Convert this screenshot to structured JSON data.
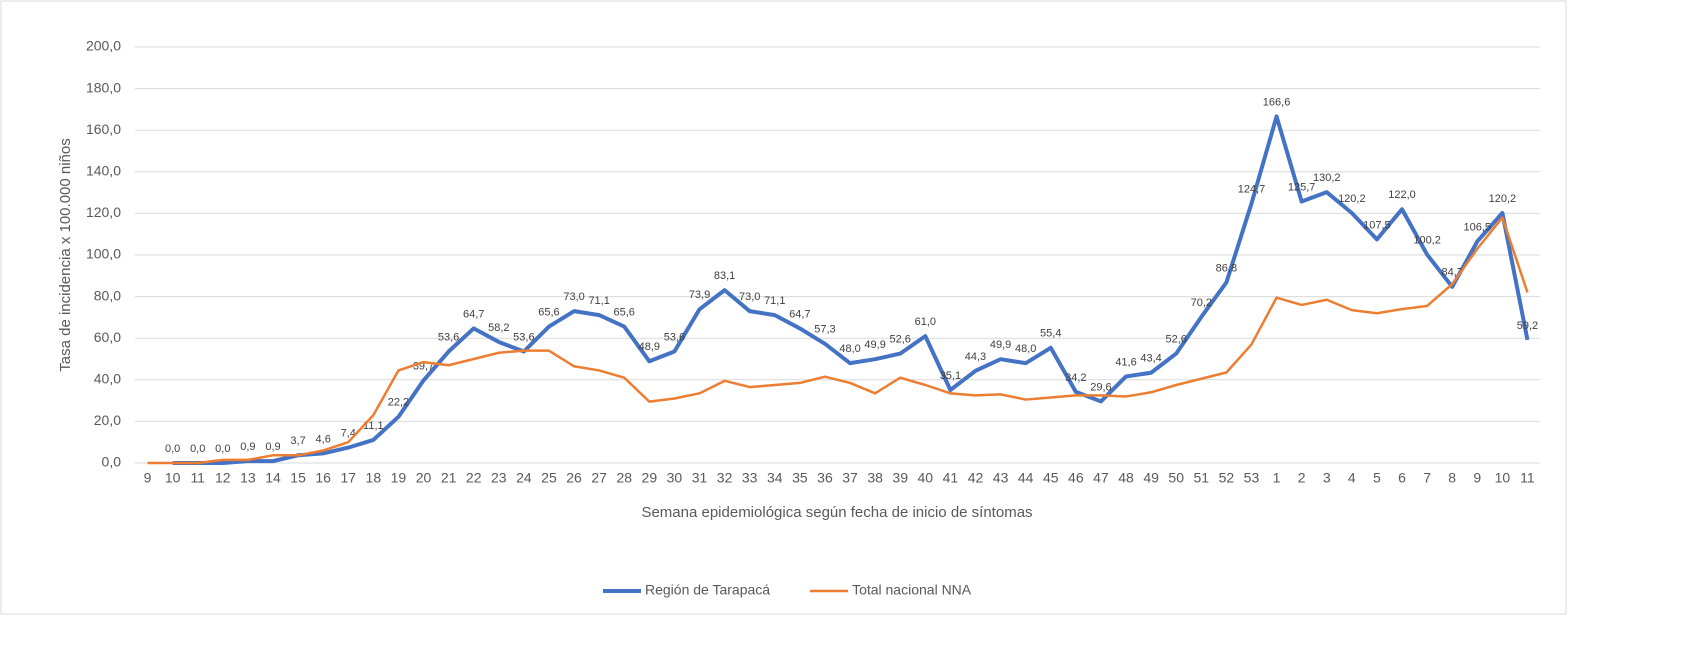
{
  "chart_data": {
    "type": "line",
    "y_label": "Tasa de incidencia x 100.000 niños",
    "x_label": "Semana epidemiológica según fecha de inicio de síntomas",
    "categories": [
      "9",
      "10",
      "11",
      "12",
      "13",
      "14",
      "15",
      "16",
      "17",
      "18",
      "19",
      "20",
      "21",
      "22",
      "23",
      "24",
      "25",
      "26",
      "27",
      "28",
      "29",
      "30",
      "31",
      "32",
      "33",
      "34",
      "35",
      "36",
      "37",
      "38",
      "39",
      "40",
      "41",
      "42",
      "43",
      "44",
      "45",
      "46",
      "47",
      "48",
      "49",
      "50",
      "51",
      "52",
      "53",
      "1",
      "2",
      "3",
      "4",
      "5",
      "6",
      "7",
      "8",
      "9",
      "10",
      "11"
    ],
    "series": [
      {
        "name": "Región de Tarapacá",
        "color": "#4472c4",
        "values": [
          null,
          0,
          0,
          0,
          0.9,
          0.9,
          3.7,
          4.6,
          7.4,
          11.1,
          22.2,
          39.7,
          53.6,
          64.7,
          58.2,
          53.6,
          65.6,
          73.0,
          71.1,
          65.6,
          48.9,
          53.6,
          73.9,
          83.1,
          73.0,
          71.1,
          64.7,
          57.3,
          48.0,
          49.9,
          52.6,
          61.0,
          35.1,
          44.3,
          49.9,
          48.0,
          55.4,
          34.2,
          29.6,
          41.6,
          43.4,
          52.6,
          70.2,
          86.8,
          124.7,
          166.6,
          125.7,
          130.2,
          120.2,
          107.5,
          122.0,
          100.2,
          84.7,
          106.5,
          120.2,
          59.2
        ],
        "value_labels": [
          null,
          "0,0",
          "0,0",
          "0,0",
          "0,9",
          "0,9",
          "3,7",
          "4,6",
          "7,4",
          "11,1",
          "22,2",
          "39,7",
          "53,6",
          "64,7",
          "58,2",
          "53,6",
          "65,6",
          "73,0",
          "71,1",
          "65,6",
          "48,9",
          "53,6",
          "73,9",
          "83,1",
          "73,0",
          "71,1",
          "64,7",
          "57,3",
          "48,0",
          "49,9",
          "52,6",
          "61,0",
          "35,1",
          "44,3",
          "49,9",
          "48,0",
          "55,4",
          "34,2",
          "29,6",
          "41,6",
          "43,4",
          "52,6",
          "70,2",
          "86,8",
          "124,7",
          "166,6",
          "125,7",
          "130,2",
          "120,2",
          "107,5",
          "122,0",
          "100,2",
          "84,7",
          "106,5",
          "120,2",
          "59,2"
        ]
      },
      {
        "name": "Total nacional NNA",
        "color": "#ed7d31",
        "values": [
          0,
          0,
          0,
          1.5,
          1.5,
          3.7,
          3.7,
          6,
          10,
          23,
          44.5,
          48.5,
          47,
          50,
          53,
          54,
          54,
          46.5,
          44.5,
          41,
          29.5,
          31,
          33.5,
          39.5,
          36.5,
          37.5,
          38.5,
          41.5,
          38.5,
          33.5,
          41,
          37.5,
          33.5,
          32.5,
          33,
          30.5,
          31.5,
          32.5,
          32.5,
          32,
          34,
          37.5,
          40.5,
          43.5,
          57,
          79.5,
          76,
          78.5,
          73.5,
          72,
          74,
          75.5,
          86,
          103,
          118,
          82
        ]
      }
    ],
    "ylim": [
      0,
      200
    ],
    "yticks": [
      {
        "value": 0,
        "label": "0,0"
      },
      {
        "value": 20,
        "label": "20,0"
      },
      {
        "value": 40,
        "label": "40,0"
      },
      {
        "value": 60,
        "label": "60,0"
      },
      {
        "value": 80,
        "label": "80,0"
      },
      {
        "value": 100,
        "label": "100,0"
      },
      {
        "value": 120,
        "label": "120,0"
      },
      {
        "value": 140,
        "label": "140,0"
      },
      {
        "value": 160,
        "label": "160,0"
      },
      {
        "value": 180,
        "label": "180,0"
      },
      {
        "value": 200,
        "label": "200,0"
      }
    ],
    "grid": true,
    "legend": "bottom"
  }
}
